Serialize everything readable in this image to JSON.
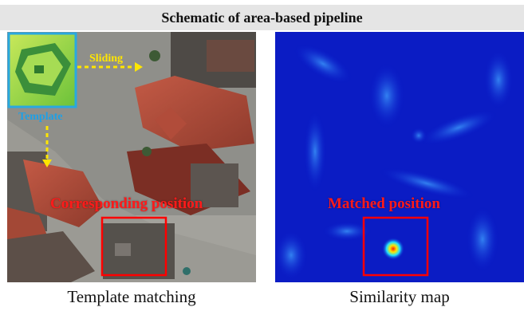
{
  "header": {
    "title": "Schematic of area-based pipeline"
  },
  "left_panel": {
    "caption": "Template matching",
    "labels": {
      "sliding": "Sliding",
      "template": "Template",
      "corresponding": "Corresponding position"
    }
  },
  "right_panel": {
    "caption": "Similarity map",
    "labels": {
      "matched": "Matched position"
    }
  },
  "colors": {
    "highlight_box": "#ff0000",
    "template_frame": "#29a8e0",
    "arrow": "#ffe600",
    "similarity_base": "#0a1fd0"
  }
}
